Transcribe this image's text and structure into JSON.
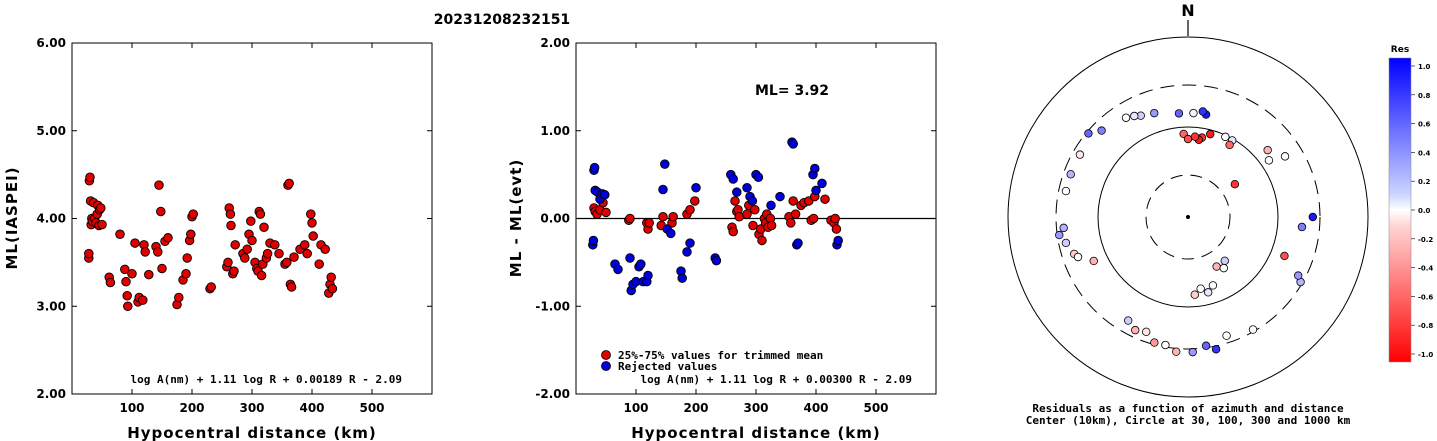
{
  "title": "20231208232151",
  "chart_data": [
    {
      "type": "scatter",
      "title": "",
      "xlabel": "Hypocentral distance (km)",
      "ylabel": "ML(IASPEI)",
      "xlim": [
        0,
        600
      ],
      "ylim": [
        2.0,
        6.0
      ],
      "x_ticks": [
        "100",
        "200",
        "300",
        "400",
        "500"
      ],
      "y_ticks": [
        "2.00",
        "3.00",
        "4.00",
        "5.00",
        "6.00"
      ],
      "formula": "log A(nm) + 1.11 log R + 0.00189 R - 2.09",
      "color": "#e00000",
      "points": [
        [
          28,
          3.55
        ],
        [
          28,
          3.6
        ],
        [
          29,
          4.43
        ],
        [
          30,
          4.47
        ],
        [
          31,
          4.2
        ],
        [
          32,
          3.93
        ],
        [
          33,
          4.0
        ],
        [
          34,
          3.97
        ],
        [
          36,
          4.18
        ],
        [
          38,
          4.0
        ],
        [
          40,
          3.95
        ],
        [
          42,
          4.05
        ],
        [
          43,
          4.15
        ],
        [
          45,
          3.92
        ],
        [
          46,
          4.1
        ],
        [
          48,
          4.12
        ],
        [
          50,
          3.93
        ],
        [
          62,
          3.33
        ],
        [
          64,
          3.27
        ],
        [
          80,
          3.82
        ],
        [
          88,
          3.42
        ],
        [
          90,
          3.28
        ],
        [
          92,
          3.12
        ],
        [
          93,
          3.0
        ],
        [
          100,
          3.37
        ],
        [
          105,
          3.72
        ],
        [
          110,
          3.05
        ],
        [
          112,
          3.1
        ],
        [
          118,
          3.07
        ],
        [
          120,
          3.7
        ],
        [
          122,
          3.62
        ],
        [
          128,
          3.36
        ],
        [
          140,
          3.68
        ],
        [
          143,
          3.62
        ],
        [
          145,
          4.38
        ],
        [
          148,
          4.08
        ],
        [
          150,
          3.43
        ],
        [
          155,
          3.74
        ],
        [
          160,
          3.78
        ],
        [
          175,
          3.02
        ],
        [
          178,
          3.1
        ],
        [
          185,
          3.3
        ],
        [
          190,
          3.37
        ],
        [
          192,
          3.55
        ],
        [
          196,
          3.75
        ],
        [
          198,
          3.82
        ],
        [
          200,
          4.02
        ],
        [
          202,
          4.05
        ],
        [
          230,
          3.2
        ],
        [
          232,
          3.22
        ],
        [
          258,
          3.45
        ],
        [
          260,
          3.5
        ],
        [
          262,
          4.12
        ],
        [
          264,
          4.05
        ],
        [
          265,
          3.92
        ],
        [
          268,
          3.37
        ],
        [
          270,
          3.4
        ],
        [
          272,
          3.7
        ],
        [
          285,
          3.6
        ],
        [
          288,
          3.55
        ],
        [
          292,
          3.65
        ],
        [
          295,
          3.82
        ],
        [
          298,
          3.97
        ],
        [
          300,
          3.75
        ],
        [
          305,
          3.5
        ],
        [
          308,
          3.43
        ],
        [
          310,
          3.4
        ],
        [
          312,
          4.08
        ],
        [
          314,
          4.05
        ],
        [
          316,
          3.35
        ],
        [
          318,
          3.48
        ],
        [
          320,
          3.9
        ],
        [
          324,
          3.55
        ],
        [
          326,
          3.6
        ],
        [
          330,
          3.72
        ],
        [
          338,
          3.7
        ],
        [
          345,
          3.6
        ],
        [
          355,
          3.48
        ],
        [
          358,
          3.5
        ],
        [
          360,
          4.38
        ],
        [
          362,
          4.4
        ],
        [
          364,
          3.25
        ],
        [
          366,
          3.22
        ],
        [
          370,
          3.56
        ],
        [
          380,
          3.65
        ],
        [
          388,
          3.7
        ],
        [
          392,
          3.6
        ],
        [
          398,
          4.05
        ],
        [
          400,
          3.95
        ],
        [
          402,
          3.8
        ],
        [
          412,
          3.48
        ],
        [
          415,
          3.7
        ],
        [
          422,
          3.65
        ],
        [
          428,
          3.15
        ],
        [
          430,
          3.25
        ],
        [
          432,
          3.33
        ],
        [
          434,
          3.2
        ]
      ]
    },
    {
      "type": "scatter",
      "title": "ML= 3.92",
      "xlabel": "Hypocentral distance (km)",
      "ylabel": "ML - ML(evt)",
      "xlim": [
        0,
        600
      ],
      "ylim": [
        -2.0,
        2.0
      ],
      "x_ticks": [
        "100",
        "200",
        "300",
        "400",
        "500"
      ],
      "y_ticks": [
        "-2.00",
        "-1.00",
        "0.00",
        "1.00",
        "2.00"
      ],
      "formula": "log A(nm) + 1.11 log R + 0.00300 R - 2.09",
      "legend": [
        {
          "label": "25%-75% values for trimmed mean",
          "color": "#e00000"
        },
        {
          "label": "Rejected values",
          "color": "#0000dd"
        }
      ],
      "series": [
        {
          "name": "25%-75% values for trimmed mean",
          "color": "#e00000",
          "points": [
            [
              30,
              0.12
            ],
            [
              32,
              0.08
            ],
            [
              35,
              0.05
            ],
            [
              40,
              0.1
            ],
            [
              45,
              0.18
            ],
            [
              50,
              0.07
            ],
            [
              88,
              -0.02
            ],
            [
              90,
              0.0
            ],
            [
              118,
              -0.05
            ],
            [
              120,
              -0.12
            ],
            [
              122,
              -0.05
            ],
            [
              142,
              -0.08
            ],
            [
              145,
              0.02
            ],
            [
              160,
              -0.05
            ],
            [
              162,
              0.02
            ],
            [
              185,
              0.05
            ],
            [
              190,
              0.1
            ],
            [
              198,
              0.2
            ],
            [
              260,
              -0.1
            ],
            [
              262,
              -0.15
            ],
            [
              265,
              0.2
            ],
            [
              268,
              0.08
            ],
            [
              270,
              0.1
            ],
            [
              272,
              0.02
            ],
            [
              285,
              0.05
            ],
            [
              288,
              0.15
            ],
            [
              295,
              -0.08
            ],
            [
              298,
              0.1
            ],
            [
              305,
              -0.18
            ],
            [
              308,
              -0.12
            ],
            [
              310,
              -0.25
            ],
            [
              314,
              0.0
            ],
            [
              316,
              -0.05
            ],
            [
              318,
              0.05
            ],
            [
              320,
              -0.1
            ],
            [
              324,
              0.0
            ],
            [
              326,
              -0.08
            ],
            [
              355,
              0.02
            ],
            [
              358,
              -0.05
            ],
            [
              362,
              0.2
            ],
            [
              366,
              0.05
            ],
            [
              375,
              0.15
            ],
            [
              380,
              0.18
            ],
            [
              388,
              0.2
            ],
            [
              392,
              -0.02
            ],
            [
              396,
              0.0
            ],
            [
              398,
              0.25
            ],
            [
              415,
              0.22
            ],
            [
              425,
              -0.02
            ],
            [
              430,
              -0.05
            ],
            [
              432,
              0.0
            ],
            [
              434,
              -0.12
            ]
          ]
        },
        {
          "name": "Rejected values",
          "color": "#0000dd",
          "points": [
            [
              28,
              -0.3
            ],
            [
              29,
              -0.25
            ],
            [
              30,
              0.55
            ],
            [
              31,
              0.58
            ],
            [
              32,
              0.32
            ],
            [
              36,
              0.3
            ],
            [
              40,
              0.22
            ],
            [
              44,
              0.28
            ],
            [
              48,
              0.27
            ],
            [
              65,
              -0.52
            ],
            [
              70,
              -0.58
            ],
            [
              90,
              -0.45
            ],
            [
              92,
              -0.82
            ],
            [
              95,
              -0.75
            ],
            [
              100,
              -0.72
            ],
            [
              105,
              -0.55
            ],
            [
              108,
              -0.52
            ],
            [
              112,
              -0.72
            ],
            [
              118,
              -0.72
            ],
            [
              120,
              -0.65
            ],
            [
              145,
              0.33
            ],
            [
              148,
              0.62
            ],
            [
              152,
              -0.12
            ],
            [
              158,
              -0.17
            ],
            [
              175,
              -0.6
            ],
            [
              177,
              -0.68
            ],
            [
              185,
              -0.38
            ],
            [
              190,
              -0.28
            ],
            [
              200,
              0.35
            ],
            [
              232,
              -0.45
            ],
            [
              234,
              -0.48
            ],
            [
              258,
              0.5
            ],
            [
              262,
              0.45
            ],
            [
              268,
              0.3
            ],
            [
              285,
              0.35
            ],
            [
              290,
              0.25
            ],
            [
              294,
              0.2
            ],
            [
              300,
              0.5
            ],
            [
              304,
              0.47
            ],
            [
              325,
              0.15
            ],
            [
              340,
              0.25
            ],
            [
              360,
              0.87
            ],
            [
              362,
              0.85
            ],
            [
              368,
              -0.3
            ],
            [
              370,
              -0.28
            ],
            [
              395,
              0.5
            ],
            [
              398,
              0.57
            ],
            [
              400,
              0.32
            ],
            [
              410,
              0.4
            ],
            [
              435,
              -0.3
            ],
            [
              437,
              -0.25
            ]
          ]
        }
      ]
    },
    {
      "type": "scatter",
      "title": "N",
      "caption_line1": "Residuals as a function of azimuth and distance",
      "caption_line2": "Center (10km), Circle at 30, 100, 300 and 1000 km",
      "colorbar_title": "Res",
      "colorbar_ticks": [
        "1.0",
        "0.8",
        "0.6",
        "0.4",
        "0.2",
        "0.0",
        "-0.2",
        "-0.4",
        "-0.6",
        "-0.8",
        "-1.0"
      ],
      "points_az_r_res": [
        [
          10,
          40,
          0.9
        ],
        [
          8,
          41,
          0.8
        ],
        [
          3,
          40,
          0.05
        ],
        [
          -5,
          40,
          0.6
        ],
        [
          -18,
          42,
          0.4
        ],
        [
          -25,
          43,
          0.2
        ],
        [
          -28,
          44,
          0.1
        ],
        [
          -32,
          45,
          0.0
        ],
        [
          -45,
          47,
          0.5
        ],
        [
          -50,
          50,
          0.6
        ],
        [
          -60,
          48,
          -0.1
        ],
        [
          -70,
          48,
          0.3
        ],
        [
          -78,
          48,
          0.0
        ],
        [
          -95,
          48,
          0.3
        ],
        [
          -98,
          50,
          0.4
        ],
        [
          -102,
          48,
          0.2
        ],
        [
          -108,
          46,
          -0.2
        ],
        [
          -110,
          45,
          0.0
        ],
        [
          -115,
          40,
          -0.3
        ],
        [
          -150,
          46,
          0.2
        ],
        [
          -155,
          48,
          -0.3
        ],
        [
          -160,
          47,
          -0.1
        ],
        [
          -165,
          50,
          -0.4
        ],
        [
          -170,
          50,
          0.0
        ],
        [
          -175,
          52,
          -0.3
        ],
        [
          178,
          52,
          0.4
        ],
        [
          172,
          50,
          0.6
        ],
        [
          168,
          52,
          0.8
        ],
        [
          162,
          48,
          0.0
        ],
        [
          150,
          50,
          0.0
        ],
        [
          120,
          50,
          0.3
        ],
        [
          118,
          48,
          0.4
        ],
        [
          90,
          48,
          0.9
        ],
        [
          112,
          40,
          -0.7
        ],
        [
          95,
          44,
          0.5
        ],
        [
          58,
          44,
          0.0
        ],
        [
          55,
          38,
          0.0
        ],
        [
          50,
          40,
          -0.3
        ],
        [
          30,
          34,
          0.1
        ],
        [
          25,
          34,
          0.0
        ],
        [
          15,
          33,
          -0.9
        ],
        [
          10,
          31,
          -0.8
        ],
        [
          8,
          30,
          -0.9
        ],
        [
          5,
          31,
          -0.8
        ],
        [
          -3,
          32,
          -0.6
        ],
        [
          0,
          30,
          -0.7
        ],
        [
          55,
          22,
          -0.8
        ],
        [
          30,
          32,
          -0.6
        ],
        [
          150,
          22,
          -0.3
        ],
        [
          140,
          22,
          0.2
        ],
        [
          145,
          24,
          0.0
        ],
        [
          160,
          28,
          0.0
        ],
        [
          170,
          28,
          0.0
        ],
        [
          175,
          30,
          -0.2
        ],
        [
          165,
          30,
          0.1
        ]
      ]
    }
  ]
}
